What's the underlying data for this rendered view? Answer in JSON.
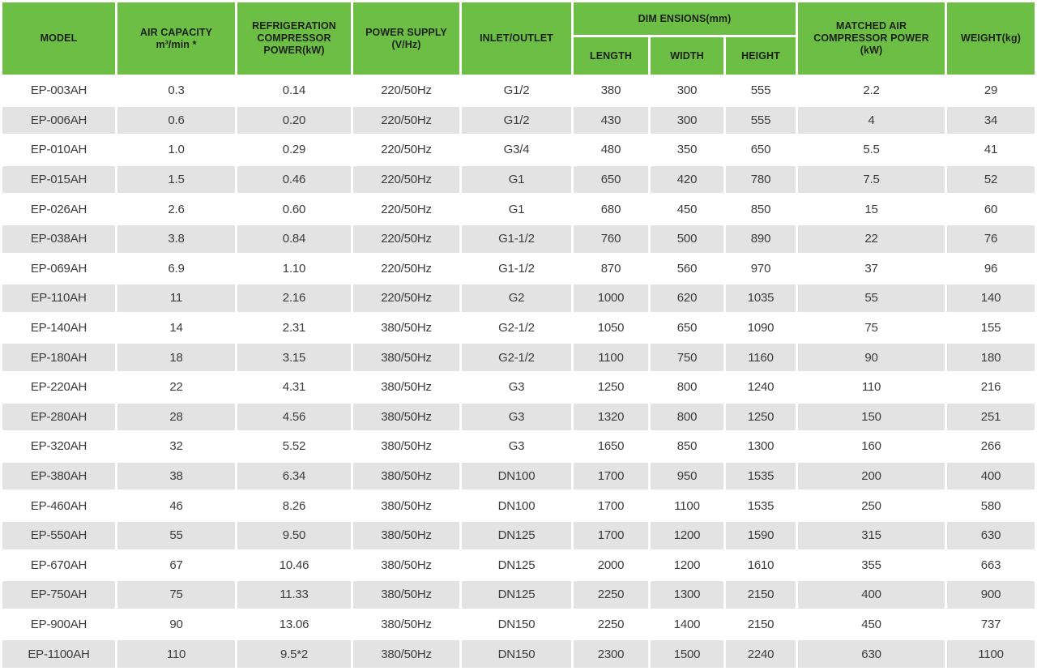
{
  "table": {
    "accent_green": "#6cbe45",
    "row_alt_gray": "#e3e3e3",
    "header": {
      "model": "MODEL",
      "air_capacity_line1": "AIR CAPACITY",
      "air_capacity_line2": "m³/min *",
      "refrigeration_line1": "REFRIGERATION",
      "refrigeration_line2": "COMPRESSOR",
      "refrigeration_line3": "POWER(kW)",
      "power_supply_line1": "POWER SUPPLY",
      "power_supply_line2": "(V/Hz)",
      "inlet_outlet": "INLET/OUTLET",
      "dimensions_group": "DIM ENSIONS(mm)",
      "length": "LENGTH",
      "width": "WIDTH",
      "height": "HEIGHT",
      "matched_line1": "MATCHED AIR",
      "matched_line2": "COMPRESSOR POWER",
      "matched_line3": "(kW)",
      "weight": "WEIGHT(kg)"
    },
    "column_keys": [
      "model",
      "air-capacity",
      "refrigeration-compressor-power",
      "power-supply",
      "inlet-outlet",
      "length",
      "width",
      "height",
      "matched-air-compressor-power",
      "weight"
    ],
    "rows": [
      [
        "EP-003AH",
        "0.3",
        "0.14",
        "220/50Hz",
        "G1/2",
        "380",
        "300",
        "555",
        "2.2",
        "29"
      ],
      [
        "EP-006AH",
        "0.6",
        "0.20",
        "220/50Hz",
        "G1/2",
        "430",
        "300",
        "555",
        "4",
        "34"
      ],
      [
        "EP-010AH",
        "1.0",
        "0.29",
        "220/50Hz",
        "G3/4",
        "480",
        "350",
        "650",
        "5.5",
        "41"
      ],
      [
        "EP-015AH",
        "1.5",
        "0.46",
        "220/50Hz",
        "G1",
        "650",
        "420",
        "780",
        "7.5",
        "52"
      ],
      [
        "EP-026AH",
        "2.6",
        "0.60",
        "220/50Hz",
        "G1",
        "680",
        "450",
        "850",
        "15",
        "60"
      ],
      [
        "EP-038AH",
        "3.8",
        "0.84",
        "220/50Hz",
        "G1-1/2",
        "760",
        "500",
        "890",
        "22",
        "76"
      ],
      [
        "EP-069AH",
        "6.9",
        "1.10",
        "220/50Hz",
        "G1-1/2",
        "870",
        "560",
        "970",
        "37",
        "96"
      ],
      [
        "EP-110AH",
        "11",
        "2.16",
        "220/50Hz",
        "G2",
        "1000",
        "620",
        "1035",
        "55",
        "140"
      ],
      [
        "EP-140AH",
        "14",
        "2.31",
        "380/50Hz",
        "G2-1/2",
        "1050",
        "650",
        "1090",
        "75",
        "155"
      ],
      [
        "EP-180AH",
        "18",
        "3.15",
        "380/50Hz",
        "G2-1/2",
        "1100",
        "750",
        "1160",
        "90",
        "180"
      ],
      [
        "EP-220AH",
        "22",
        "4.31",
        "380/50Hz",
        "G3",
        "1250",
        "800",
        "1240",
        "110",
        "216"
      ],
      [
        "EP-280AH",
        "28",
        "4.56",
        "380/50Hz",
        "G3",
        "1320",
        "800",
        "1250",
        "150",
        "251"
      ],
      [
        "EP-320AH",
        "32",
        "5.52",
        "380/50Hz",
        "G3",
        "1650",
        "850",
        "1300",
        "160",
        "266"
      ],
      [
        "EP-380AH",
        "38",
        "6.34",
        "380/50Hz",
        "DN100",
        "1700",
        "950",
        "1535",
        "200",
        "400"
      ],
      [
        "EP-460AH",
        "46",
        "8.26",
        "380/50Hz",
        "DN100",
        "1700",
        "1100",
        "1535",
        "250",
        "580"
      ],
      [
        "EP-550AH",
        "55",
        "9.50",
        "380/50Hz",
        "DN125",
        "1700",
        "1200",
        "1590",
        "315",
        "630"
      ],
      [
        "EP-670AH",
        "67",
        "10.46",
        "380/50Hz",
        "DN125",
        "2000",
        "1200",
        "1610",
        "355",
        "663"
      ],
      [
        "EP-750AH",
        "75",
        "11.33",
        "380/50Hz",
        "DN125",
        "2250",
        "1300",
        "2150",
        "400",
        "900"
      ],
      [
        "EP-900AH",
        "90",
        "13.06",
        "380/50Hz",
        "DN150",
        "2250",
        "1400",
        "2150",
        "450",
        "737"
      ],
      [
        "EP-1100AH",
        "110",
        "9.5*2",
        "380/50Hz",
        "DN150",
        "2300",
        "1500",
        "2240",
        "630",
        "1100"
      ]
    ]
  }
}
